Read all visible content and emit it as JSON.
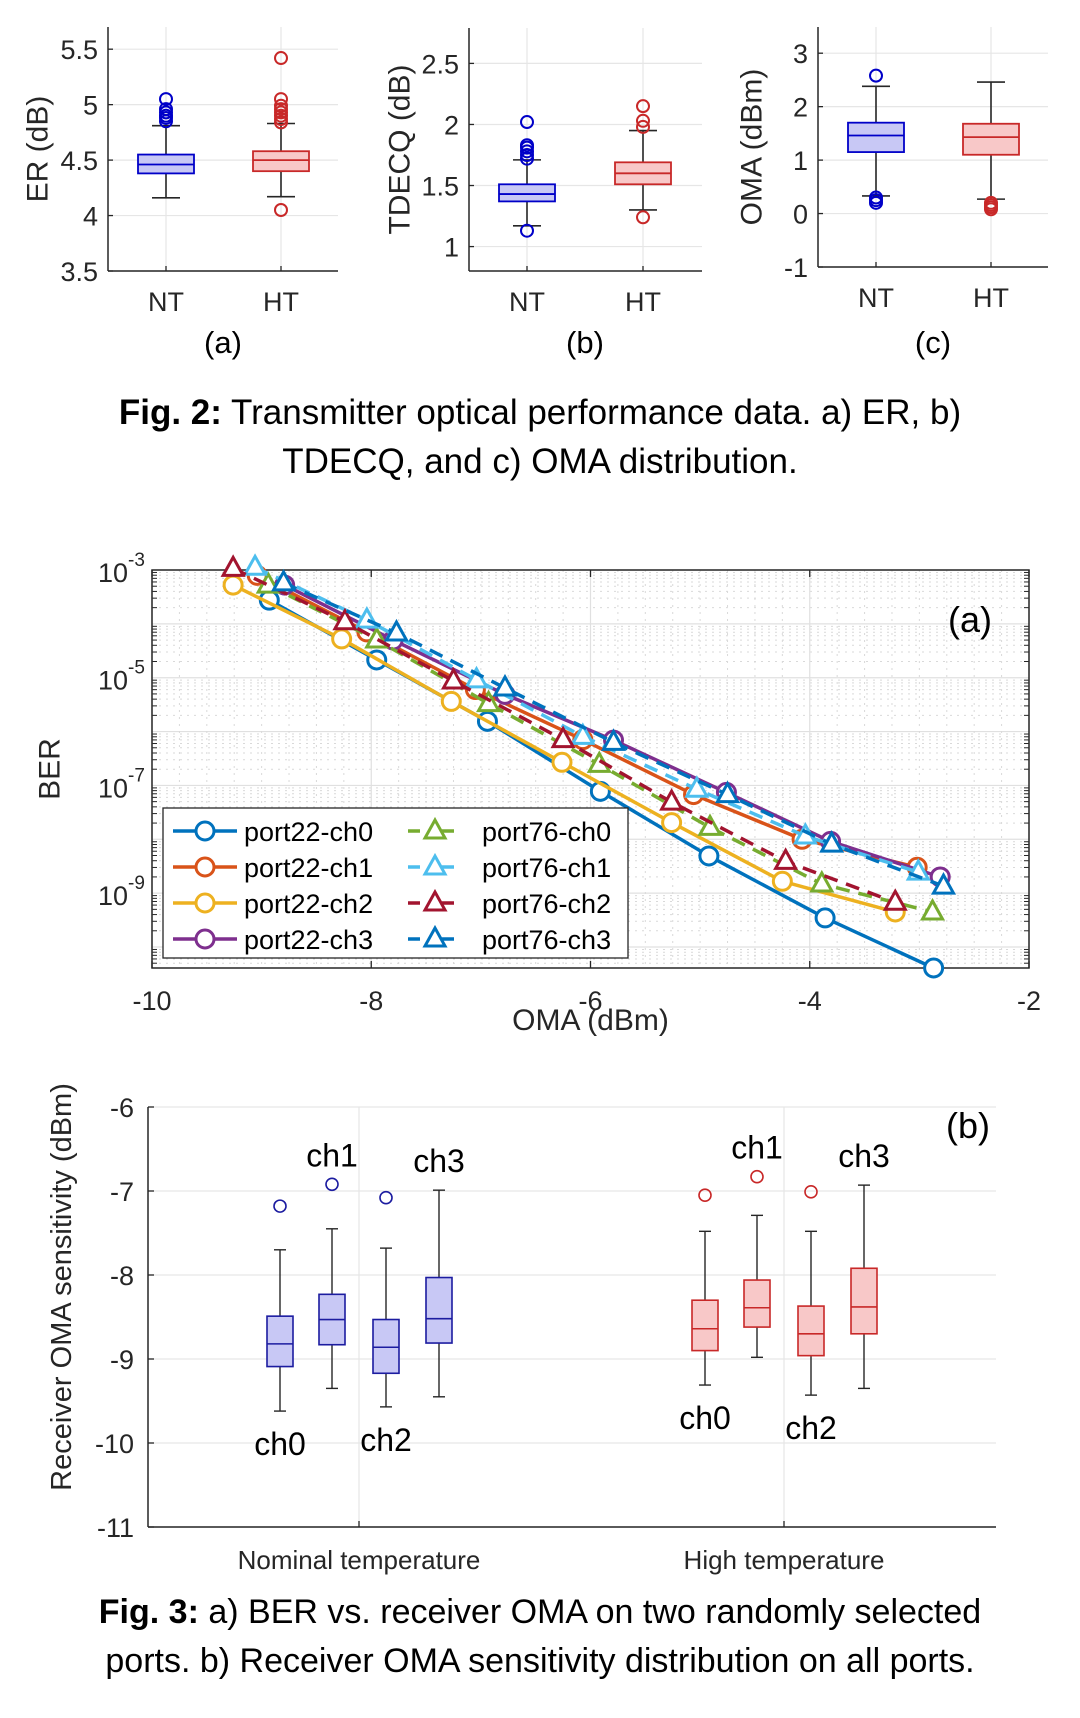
{
  "fig2": {
    "caption_bold": "Fig. 2:",
    "caption_line1": " Transmitter optical performance data. a) ER, b)",
    "caption_line2": "TDECQ, and c) OMA distribution."
  },
  "fig3": {
    "caption_bold": "Fig. 3:",
    "caption_line1": " a) BER vs. receiver OMA on two randomly selected",
    "caption_line2": "ports. b) Receiver OMA sensitivity distribution on all ports."
  },
  "chart_data": [
    {
      "id": "er",
      "type": "box",
      "panel_label": "(a)",
      "ylabel": "ER (dB)",
      "ylim": [
        3.5,
        5.7
      ],
      "yticks": [
        3.5,
        4,
        4.5,
        5,
        5.5
      ],
      "ytick_labels": [
        "3.5",
        "4",
        "4.5",
        "5",
        "5.5"
      ],
      "categories": [
        "NT",
        "HT"
      ],
      "grid": true,
      "boxes": [
        {
          "label": "NT",
          "color": "#0000c8",
          "fill": "#c8c8f5",
          "q1": 4.38,
          "median": 4.46,
          "q3": 4.55,
          "whisker_low": 4.16,
          "whisker_high": 4.81,
          "outliers": [
            4.85,
            4.88,
            4.9,
            4.93,
            4.96,
            5.05
          ]
        },
        {
          "label": "HT",
          "color": "#c82828",
          "fill": "#f8c8c8",
          "q1": 4.4,
          "median": 4.5,
          "q3": 4.58,
          "whisker_low": 4.17,
          "whisker_high": 4.83,
          "outliers": [
            4.05,
            4.84,
            4.87,
            4.9,
            4.93,
            4.96,
            4.99,
            5.05,
            5.42
          ]
        }
      ]
    },
    {
      "id": "tdecq",
      "type": "box",
      "panel_label": "(b)",
      "ylabel": "TDECQ (dB)",
      "ylim": [
        0.8,
        2.79
      ],
      "yticks": [
        1,
        1.5,
        2,
        2.5
      ],
      "ytick_labels": [
        "1",
        "1.5",
        "2",
        "2.5"
      ],
      "categories": [
        "NT",
        "HT"
      ],
      "grid": true,
      "boxes": [
        {
          "label": "NT",
          "color": "#0000c8",
          "fill": "#c8c8f5",
          "q1": 1.37,
          "median": 1.43,
          "q3": 1.51,
          "whisker_low": 1.17,
          "whisker_high": 1.71,
          "outliers": [
            1.13,
            1.72,
            1.75,
            1.78,
            1.81,
            1.83,
            2.02
          ]
        },
        {
          "label": "HT",
          "color": "#c82828",
          "fill": "#f8c8c8",
          "q1": 1.51,
          "median": 1.6,
          "q3": 1.69,
          "whisker_low": 1.3,
          "whisker_high": 1.95,
          "outliers": [
            1.24,
            1.98,
            2.03,
            2.15
          ]
        }
      ]
    },
    {
      "id": "oma",
      "type": "box",
      "panel_label": "(c)",
      "ylabel": "OMA (dBm)",
      "ylim": [
        -1,
        3.49
      ],
      "yticks": [
        -1,
        0,
        1,
        2,
        3
      ],
      "ytick_labels": [
        "-1",
        "0",
        "1",
        "2",
        "3"
      ],
      "categories": [
        "NT",
        "HT"
      ],
      "grid": true,
      "boxes": [
        {
          "label": "NT",
          "color": "#0000c8",
          "fill": "#c8c8f5",
          "q1": 1.15,
          "median": 1.46,
          "q3": 1.7,
          "whisker_low": 0.33,
          "whisker_high": 2.38,
          "outliers": [
            0.2,
            0.25,
            0.3,
            2.58
          ]
        },
        {
          "label": "HT",
          "color": "#c82828",
          "fill": "#f8c8c8",
          "q1": 1.1,
          "median": 1.43,
          "q3": 1.68,
          "whisker_low": 0.27,
          "whisker_high": 2.46,
          "outliers": [
            0.08,
            0.12,
            0.16,
            0.2
          ]
        }
      ]
    },
    {
      "id": "ber",
      "type": "line",
      "panel_label": "(a)",
      "xlabel": "OMA (dBm)",
      "ylabel": "BER",
      "xlim": [
        -10,
        -2
      ],
      "xticks": [
        -10,
        -8,
        -6,
        -4,
        -2
      ],
      "xtick_labels": [
        "-10",
        "-8",
        "-6",
        "-4",
        "-2"
      ],
      "yscale": "log",
      "ylim_log10": [
        -10.39,
        -3
      ],
      "yticks_log10": [
        -3,
        -5,
        -7,
        -9
      ],
      "ytick_labels": [
        "10",
        "10",
        "10",
        "10"
      ],
      "ytick_exponents": [
        "-3",
        "-5",
        "-7",
        "-9"
      ],
      "grid": true,
      "legend_position": "bottom-left",
      "series": [
        {
          "name": "port22-ch0",
          "color": "#0072bd",
          "marker": "circle",
          "dash": false,
          "x": [
            -8.93,
            -7.95,
            -6.94,
            -5.91,
            -4.92,
            -3.86,
            -2.87
          ],
          "log10_y": [
            -3.56,
            -4.67,
            -5.81,
            -7.11,
            -8.31,
            -9.46,
            -10.39
          ]
        },
        {
          "name": "port22-ch1",
          "color": "#d95319",
          "marker": "circle",
          "dash": false,
          "x": [
            -9.04,
            -8.04,
            -7.05,
            -6.07,
            -5.06,
            -4.07,
            -3.02
          ],
          "log10_y": [
            -3.1,
            -4.15,
            -5.22,
            -6.15,
            -7.17,
            -8.0,
            -8.52
          ]
        },
        {
          "name": "port22-ch2",
          "color": "#edb120",
          "marker": "circle",
          "dash": false,
          "x": [
            -9.26,
            -8.27,
            -7.27,
            -6.26,
            -5.26,
            -4.25,
            -3.22
          ],
          "log10_y": [
            -3.28,
            -4.28,
            -5.44,
            -6.57,
            -7.69,
            -8.78,
            -9.35
          ]
        },
        {
          "name": "port22-ch3",
          "color": "#7e2f8e",
          "marker": "circle",
          "dash": false,
          "x": [
            -8.79,
            -7.8,
            -6.78,
            -5.79,
            -4.76,
            -3.81,
            -2.81
          ],
          "log10_y": [
            -3.28,
            -4.3,
            -5.31,
            -6.16,
            -7.13,
            -8.04,
            -8.7
          ]
        },
        {
          "name": "port76-ch0",
          "color": "#77ac30",
          "marker": "triangle",
          "dash": true,
          "x": [
            -8.94,
            -7.95,
            -6.93,
            -5.92,
            -4.91,
            -3.89,
            -2.88
          ],
          "log10_y": [
            -3.28,
            -4.3,
            -5.48,
            -6.61,
            -7.78,
            -8.83,
            -9.35
          ]
        },
        {
          "name": "port76-ch1",
          "color": "#4dbeee",
          "marker": "triangle",
          "dash": true,
          "x": [
            -9.06,
            -8.04,
            -7.04,
            -6.07,
            -5.03,
            -4.04,
            -3.01
          ],
          "log10_y": [
            -2.95,
            -3.93,
            -5.04,
            -6.09,
            -7.07,
            -7.94,
            -8.61
          ]
        },
        {
          "name": "port76-ch2",
          "color": "#a2142f",
          "marker": "triangle",
          "dash": true,
          "x": [
            -9.26,
            -8.24,
            -7.25,
            -6.25,
            -5.26,
            -4.22,
            -3.22
          ],
          "log10_y": [
            -2.97,
            -3.96,
            -5.06,
            -6.15,
            -7.31,
            -8.41,
            -9.17
          ]
        },
        {
          "name": "port76-ch3",
          "color": "#0072bd",
          "marker": "triangle",
          "dash": true,
          "x": [
            -8.8,
            -7.77,
            -6.78,
            -5.79,
            -4.75,
            -3.8,
            -2.78
          ],
          "log10_y": [
            -3.24,
            -4.17,
            -5.19,
            -6.2,
            -7.17,
            -8.09,
            -8.87
          ]
        }
      ]
    },
    {
      "id": "rx_sens",
      "type": "box",
      "panel_label": "(b)",
      "ylabel": "Receiver OMA sensitivity (dBm)",
      "ylim": [
        -11,
        -6
      ],
      "yticks": [
        -11,
        -10,
        -9,
        -8,
        -7,
        -6
      ],
      "ytick_labels": [
        "-11",
        "-10",
        "-9",
        "-8",
        "-7",
        "-6"
      ],
      "groups": [
        "Nominal temperature",
        "High temperature"
      ],
      "grid": true,
      "boxes": [
        {
          "group": 0,
          "channel": "ch0",
          "label_pos": "below",
          "color": "#1c1ca0",
          "fill": "#c8c8f5",
          "q1": -9.09,
          "median": -8.82,
          "q3": -8.49,
          "whisker_low": -9.62,
          "whisker_high": -7.7,
          "outliers": [
            -7.18
          ]
        },
        {
          "group": 0,
          "channel": "ch1",
          "label_pos": "above",
          "color": "#1c1ca0",
          "fill": "#c8c8f5",
          "q1": -8.83,
          "median": -8.53,
          "q3": -8.23,
          "whisker_low": -9.35,
          "whisker_high": -7.45,
          "outliers": [
            -6.92
          ]
        },
        {
          "group": 0,
          "channel": "ch2",
          "label_pos": "below",
          "color": "#1c1ca0",
          "fill": "#c8c8f5",
          "q1": -9.17,
          "median": -8.86,
          "q3": -8.53,
          "whisker_low": -9.57,
          "whisker_high": -7.68,
          "outliers": [
            -7.08
          ]
        },
        {
          "group": 0,
          "channel": "ch3",
          "label_pos": "above",
          "color": "#1c1ca0",
          "fill": "#c8c8f5",
          "q1": -8.81,
          "median": -8.52,
          "q3": -8.03,
          "whisker_low": -9.45,
          "whisker_high": -6.99,
          "outliers": []
        },
        {
          "group": 1,
          "channel": "ch0",
          "label_pos": "below",
          "color": "#c82828",
          "fill": "#f8c8c8",
          "q1": -8.9,
          "median": -8.64,
          "q3": -8.3,
          "whisker_low": -9.31,
          "whisker_high": -7.48,
          "outliers": [
            -7.05
          ]
        },
        {
          "group": 1,
          "channel": "ch1",
          "label_pos": "above",
          "color": "#c82828",
          "fill": "#f8c8c8",
          "q1": -8.62,
          "median": -8.39,
          "q3": -8.06,
          "whisker_low": -8.98,
          "whisker_high": -7.29,
          "outliers": [
            -6.83
          ]
        },
        {
          "group": 1,
          "channel": "ch2",
          "label_pos": "below",
          "color": "#c82828",
          "fill": "#f8c8c8",
          "q1": -8.96,
          "median": -8.7,
          "q3": -8.37,
          "whisker_low": -9.43,
          "whisker_high": -7.48,
          "outliers": [
            -7.01
          ]
        },
        {
          "group": 1,
          "channel": "ch3",
          "label_pos": "above",
          "color": "#c82828",
          "fill": "#f8c8c8",
          "q1": -8.7,
          "median": -8.38,
          "q3": -7.92,
          "whisker_low": -9.35,
          "whisker_high": -6.93,
          "outliers": []
        }
      ]
    }
  ]
}
